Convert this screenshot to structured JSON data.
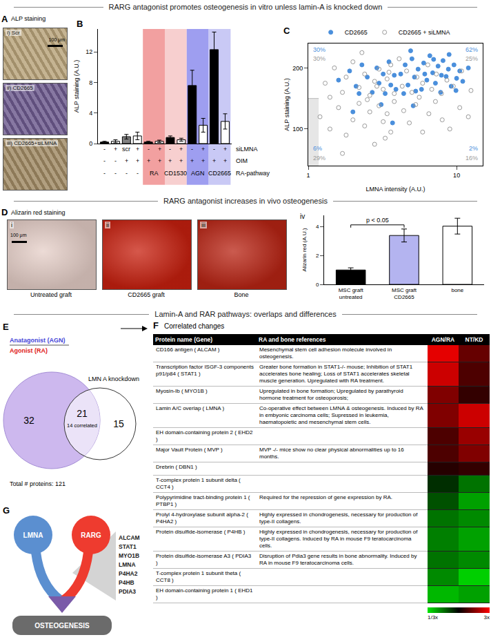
{
  "headers": [
    "RARG antagonist promotes osteogenesis in vitro unless lamin-A is knocked down",
    "RARG antagonist increases in vivo osteogenesis",
    "Lamin-A and RAR pathways:  overlaps and differences"
  ],
  "panel_A": {
    "letter": "A",
    "title": "ALP staining",
    "scale_bar": "100 μm",
    "images": [
      {
        "label": "i) Scr",
        "color": "#b8a37a"
      },
      {
        "label": "ii) CD2665",
        "color": "#6d5a8e"
      },
      {
        "label": "iii) CD2665+siLMNA",
        "color": "#a08a64"
      }
    ]
  },
  "chart_data": [
    {
      "panel": "B",
      "type": "bar",
      "ylabel": "ALP staining (A.U.)",
      "categories": [
        null,
        null,
        null,
        null,
        null,
        null,
        null,
        null,
        null,
        null,
        null,
        null
      ],
      "values": [
        0.2,
        0.3,
        0.9,
        1.0,
        0.2,
        0.3,
        0.8,
        0.5,
        7.6,
        2.4,
        12.3,
        2.9
      ],
      "errors": [
        0.1,
        0.2,
        0.3,
        0.5,
        0.1,
        0.15,
        0.2,
        0.2,
        2.0,
        0.9,
        2.3,
        1.0
      ],
      "colors": [
        "#000000",
        "#ffffff",
        "#808080",
        "#ffffff",
        "#000000",
        "#ffffff",
        "#000000",
        "#ffffff",
        "#000000",
        "#ffffff",
        "#000000",
        "#ffffff"
      ],
      "ylim": [
        0,
        15
      ],
      "yticks": [
        0,
        4,
        8,
        12
      ],
      "tick_labels": "y",
      "table_rows": [
        {
          "label": "siLMNA",
          "cells": [
            "-",
            "+",
            "scr",
            "+",
            "-",
            "+",
            "-",
            "+",
            "-",
            "+",
            "-",
            "+"
          ]
        },
        {
          "label": "OIM",
          "cells": [
            "-",
            "-",
            "+",
            "+",
            "+",
            "+",
            "+",
            "+",
            "+",
            "+",
            "+",
            "+"
          ]
        },
        {
          "label": "RA-pathway",
          "cells": [
            "-",
            "-",
            "-",
            "-",
            null,
            null,
            null,
            null,
            null,
            null,
            null,
            null
          ]
        }
      ],
      "groups": [
        {
          "label": "RA",
          "first": 4,
          "last": 5,
          "color": "#f2a0a0"
        },
        {
          "label": "CD1530",
          "first": 6,
          "last": 7,
          "color": "#f7cfcf"
        },
        {
          "label": "AGN",
          "first": 8,
          "last": 9,
          "color": "#9e9ef0"
        },
        {
          "label": "CD2665",
          "first": 10,
          "last": 11,
          "color": "#c9c9f5"
        }
      ]
    },
    {
      "panel": "C",
      "type": "scatter",
      "xlabel": "LMNA intensity (A.U.)",
      "ylabel": "ALP staining (A.U.)",
      "log": "x",
      "xlim": [
        1,
        15
      ],
      "xticks": [
        1,
        10
      ],
      "ylim": [
        40,
        240
      ],
      "yticks": [
        100,
        200
      ],
      "legend": "top",
      "quadrant_lines": {
        "x": 4,
        "y": 150
      },
      "quadrant_labels": {
        "top-left": [
          "30%",
          "30%"
        ],
        "top-right": [
          "62%",
          "25%"
        ],
        "bottom-left": [
          "6%",
          "29%"
        ],
        "bottom-right": [
          "2%",
          "16%"
        ]
      },
      "series": [
        {
          "name": "CD2665",
          "color": "#4a8fdc",
          "marker": "filled circle",
          "x": [
            1.6,
            1.9,
            2.1,
            2.3,
            2.5,
            2.7,
            2.9,
            3.0,
            3.2,
            3.3,
            3.5,
            3.6,
            3.8,
            2.2,
            3.9,
            4.2,
            4.5,
            4.7,
            5.0,
            5.2,
            5.5,
            5.8,
            6.0,
            6.3,
            6.6,
            6.9,
            7.2,
            7.5,
            7.8,
            8.1,
            8.5,
            8.8,
            9.2,
            9.6,
            10.0,
            10.5,
            11.0,
            4.4,
            4.9,
            5.3,
            6.1,
            7.0,
            7.9,
            8.9,
            12.0,
            9.9,
            2.0,
            3.1,
            3.7,
            5.1
          ],
          "y": [
            180,
            195,
            170,
            205,
            185,
            160,
            200,
            175,
            190,
            158,
            210,
            172,
            188,
            158,
            165,
            190,
            205,
            172,
            215,
            185,
            198,
            165,
            208,
            180,
            220,
            192,
            175,
            203,
            160,
            212,
            186,
            198,
            170,
            205,
            183,
            195,
            178,
            158,
            228,
            162,
            190,
            214,
            188,
            222,
            200,
            163,
            128,
            140,
            110,
            138
          ]
        },
        {
          "name": "CD2665 + siLMNA",
          "color": "#9a9a9a",
          "marker": "open circle",
          "x": [
            1.3,
            1.5,
            1.7,
            1.8,
            2.0,
            2.2,
            2.4,
            2.6,
            2.8,
            3.0,
            3.2,
            3.4,
            3.6,
            3.8,
            1.4,
            2.3,
            2.9,
            3.5,
            4.3,
            4.6,
            5.0,
            5.4,
            5.9,
            6.4,
            6.8,
            7.3,
            7.9,
            8.6,
            9.5,
            10.8,
            4.1,
            5.6,
            12.5,
            1.2,
            1.4,
            1.6,
            1.8,
            2.0,
            2.2,
            2.4,
            2.6,
            2.8,
            3.0,
            3.2,
            3.4,
            3.6,
            3.8,
            1.7,
            2.5,
            3.3,
            4.4,
            4.8,
            5.3,
            5.9,
            6.5,
            7.2,
            8.0,
            9.0,
            10.5,
            12.0
          ],
          "y": [
            175,
            200,
            160,
            185,
            210,
            168,
            190,
            155,
            178,
            198,
            165,
            182,
            205,
            158,
            152,
            225,
            170,
            193,
            170,
            195,
            160,
            185,
            175,
            205,
            165,
            190,
            158,
            180,
            170,
            195,
            215,
            152,
            163,
            120,
            100,
            135,
            90,
            115,
            142,
            105,
            128,
            75,
            138,
            112,
            125,
            95,
            145,
            60,
            148,
            85,
            130,
            110,
            140,
            95,
            125,
            145,
            115,
            100,
            135,
            120
          ]
        }
      ]
    },
    {
      "panel": "iv",
      "type": "bar",
      "ylabel": "Alizarin red (A.U.)",
      "categories": [
        "MSC graft untreated",
        "MSC graft CD2665",
        "bone"
      ],
      "values": [
        1.0,
        3.4,
        4.05
      ],
      "errors": [
        0.15,
        0.45,
        0.55
      ],
      "colors": [
        "#000000",
        "#b4b4f0",
        "#ffffff"
      ],
      "ylim": [
        0,
        4.8
      ],
      "yticks": [
        0,
        2,
        4
      ],
      "annotations": [
        {
          "text": "p < 0.05",
          "from": 0,
          "to": 1
        }
      ]
    }
  ],
  "panel_D_images": {
    "letter": "D",
    "title": "Alizarin red staining",
    "scale_bar": "100 μm",
    "images": [
      {
        "index": "i",
        "label": "Untreated graft",
        "color": "#e6cfc8"
      },
      {
        "index": "ii",
        "label": "CD2665 graft",
        "color": "#c8200f"
      },
      {
        "index": "iii",
        "label": "Bone",
        "color": "#b92414"
      }
    ]
  },
  "panel_E": {
    "letter": "E",
    "antagonist": {
      "label": "Anatagonist (AGN)",
      "color": "#4545d8"
    },
    "agonist": {
      "label": "Agonist (RA)",
      "color": "#e0201a"
    },
    "knockdown": "LMN A knockdown",
    "only_RA_pathway": 32,
    "overlap": 21,
    "only_knockdown": 15,
    "overlap_note": "14 correlated",
    "total": "Total # proteins: 121"
  },
  "panel_F": {
    "letter": "F",
    "title": "Correlated changes",
    "columns": [
      "Protein name (Gene)",
      "RA and bone references",
      "AGN/RA",
      "NT/KD"
    ],
    "color_range": [
      -1,
      1
    ],
    "color_ticks": [
      {
        "value": -1,
        "label": "1/3x"
      },
      {
        "value": 1,
        "label": "3x"
      }
    ],
    "rows": [
      {
        "name": "CD166 antigen ( ALCAM )",
        "reference": "Mesenchymal stem cell adhesion molecule involved in osteogenesis.",
        "cells": [
          0.9,
          0.4
        ]
      },
      {
        "name": "Transcription factor ISGF-3 components p91/p84 ( STAT1 )",
        "reference": "Greater bone formation in STAT1-/- mouse; Inhibition of STAT1 accelerates bone healing; Loss of STAT1 accelerates skeletal muscle generation. Upregulated with RA treatment.",
        "cells": [
          0.8,
          0.3
        ]
      },
      {
        "name": "Myosin-Ib ( MYO1B )",
        "reference": "Upregulated in bone formation; Upregulated by parathyroid hormone treatment for osteoporosis;",
        "cells": [
          0.5,
          0.2
        ]
      },
      {
        "name": "Lamin A/C overlap ( LMNA )",
        "reference": "Co-operative effect between LMNA & osteogenesis. Induced by RA in embyonic carcinoma cells; Supressed in leukemia, haematopoietic and mesenchymal stem cells.",
        "cells": [
          0.5,
          0.8
        ]
      },
      {
        "name": "EH domain-containing protein 2 ( EHD2 )",
        "cells": [
          0.3,
          0.6
        ]
      },
      {
        "name": "Major Vault Protein ( MVP )",
        "reference": "MVP -/- mice show no clear physical abnormalities up to 16 months.",
        "cells": [
          0.3,
          0.5
        ]
      },
      {
        "name": "Drebrin ( DBN1 )",
        "cells": [
          0.15,
          0.2
        ]
      },
      {
        "name": "T-complex protein 1 subunit delta ( CCT4 )",
        "cells": [
          -0.2,
          -0.5
        ]
      },
      {
        "name": "Polypyrimidine tract-binding protein 1 ( PTBP1 )",
        "reference": "Required for the repression of gene expression by RA.",
        "cells": [
          -0.35,
          -0.7
        ]
      },
      {
        "name": "Prolyl 4-hydroxylase subunit alpha-2 ( P4HA2 )",
        "reference": "Highly expressed in chondrogenesis, necessary for production of type-II collagens.",
        "cells": [
          -0.5,
          -0.6
        ]
      },
      {
        "name": "Protein disulfide-isomerase ( P4HB )",
        "reference": "Highly expressed in chondrogenesis, necessary for production of type-II collagens. Induced by RA in mouse F9 teratocarcinoma cells.",
        "cells": [
          -0.55,
          -0.7
        ]
      },
      {
        "name": "Protein disulfide-isomerase A3 ( PDIA3 )",
        "reference": "Disruption of Pdia3 gene results in bone abnormality. Induced by RA in mouse F9 teratocarcinoma cells.",
        "cells": [
          -0.5,
          -0.6
        ]
      },
      {
        "name": "T-complex protein 1 subunit theta ( CCT8 )",
        "cells": [
          -0.6,
          -0.9
        ]
      },
      {
        "name": "EH domain-containing protein 1 ( EHD1 )",
        "cells": [
          -0.8,
          -0.7
        ]
      }
    ]
  },
  "panel_G": {
    "letter": "G",
    "nodes": [
      {
        "label": "LMNA",
        "color": "#5b8fd0"
      },
      {
        "label": "RARG",
        "color": "#ee3b2f"
      }
    ],
    "target": "OSTEOGENESIS",
    "genes": [
      "ALCAM",
      "STAT1",
      "MYO1B",
      "LMNA",
      "P4HA2",
      "P4HB",
      "PDIA3"
    ]
  }
}
